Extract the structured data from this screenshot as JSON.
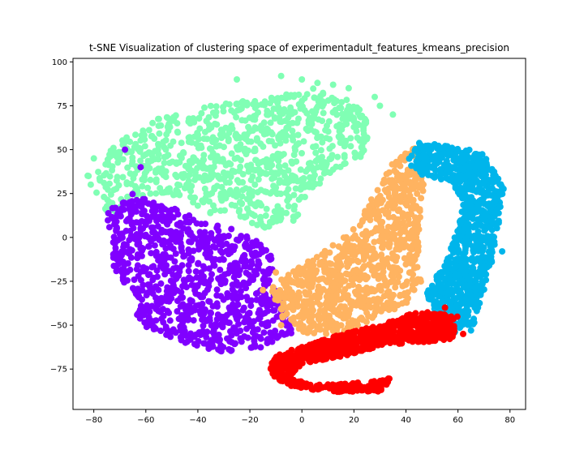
{
  "chart_data": {
    "type": "scatter",
    "title": "t-SNE Visualization of clustering space of experimentadult_features_kmeans_precision",
    "xlabel": "",
    "ylabel": "",
    "xlim": [
      -88,
      86
    ],
    "ylim": [
      -98,
      102
    ],
    "xticks": [
      -80,
      -60,
      -40,
      -20,
      0,
      20,
      40,
      60,
      80
    ],
    "yticks": [
      -75,
      -50,
      -25,
      0,
      25,
      50,
      75,
      100
    ],
    "xtick_labels": [
      "−80",
      "−60",
      "−40",
      "−20",
      "0",
      "20",
      "40",
      "60",
      "80"
    ],
    "ytick_labels": [
      "−75",
      "−50",
      "−25",
      "0",
      "25",
      "50",
      "75",
      "100"
    ],
    "grid": false,
    "legend": "none",
    "series": [
      {
        "color": "#80ffb4",
        "region": [
          [
            -83,
            35
          ],
          [
            -70,
            55
          ],
          [
            -55,
            68
          ],
          [
            -35,
            75
          ],
          [
            -15,
            80
          ],
          [
            5,
            85
          ],
          [
            20,
            78
          ],
          [
            27,
            62
          ],
          [
            25,
            48
          ],
          [
            14,
            38
          ],
          [
            5,
            28
          ],
          [
            -2,
            10
          ],
          [
            -15,
            5
          ],
          [
            -30,
            10
          ],
          [
            -45,
            20
          ],
          [
            -58,
            25
          ],
          [
            -75,
            12
          ]
        ],
        "extra_points": [
          [
            -25,
            90
          ],
          [
            -8,
            92
          ],
          [
            0,
            90
          ],
          [
            6,
            88
          ],
          [
            12,
            87
          ],
          [
            18,
            85
          ],
          [
            28,
            80
          ],
          [
            30,
            75
          ],
          [
            35,
            70
          ],
          [
            -80,
            45
          ],
          [
            -82,
            35
          ]
        ]
      },
      {
        "color": "#8000ff",
        "region": [
          [
            -75,
            15
          ],
          [
            -65,
            25
          ],
          [
            -50,
            18
          ],
          [
            -35,
            8
          ],
          [
            -20,
            2
          ],
          [
            -12,
            -10
          ],
          [
            -10,
            -25
          ],
          [
            -5,
            -45
          ],
          [
            -3,
            -55
          ],
          [
            -18,
            -65
          ],
          [
            -35,
            -65
          ],
          [
            -50,
            -58
          ],
          [
            -64,
            -48
          ],
          [
            -63,
            -35
          ],
          [
            -73,
            -18
          ]
        ],
        "extra_points": [
          [
            -68,
            50
          ],
          [
            -62,
            40
          ]
        ]
      },
      {
        "color": "#ffb360",
        "region": [
          [
            -12,
            -28
          ],
          [
            -2,
            -18
          ],
          [
            8,
            -8
          ],
          [
            20,
            5
          ],
          [
            28,
            25
          ],
          [
            36,
            45
          ],
          [
            44,
            52
          ],
          [
            48,
            40
          ],
          [
            46,
            18
          ],
          [
            45,
            -5
          ],
          [
            46,
            -25
          ],
          [
            40,
            -38
          ],
          [
            30,
            -45
          ],
          [
            15,
            -55
          ],
          [
            0,
            -55
          ],
          [
            -8,
            -45
          ]
        ],
        "extra_points": [
          [
            -10,
            -20
          ],
          [
            -15,
            -30
          ],
          [
            -8,
            -50
          ],
          [
            50,
            -30
          ]
        ]
      },
      {
        "color": "#00b5eb",
        "region": [
          [
            40,
            42
          ],
          [
            45,
            55
          ],
          [
            58,
            52
          ],
          [
            70,
            48
          ],
          [
            78,
            28
          ],
          [
            76,
            8
          ],
          [
            74,
            -10
          ],
          [
            70,
            -30
          ],
          [
            66,
            -50
          ],
          [
            58,
            -55
          ],
          [
            50,
            -48
          ],
          [
            48,
            -30
          ],
          [
            55,
            -15
          ],
          [
            60,
            5
          ],
          [
            62,
            20
          ],
          [
            58,
            30
          ],
          [
            47,
            35
          ]
        ],
        "extra_points": [
          [
            77,
            -8
          ],
          [
            65,
            -53
          ]
        ]
      },
      {
        "color": "#ff0000",
        "region": [
          [
            -12,
            -68
          ],
          [
            0,
            -62
          ],
          [
            15,
            -55
          ],
          [
            30,
            -50
          ],
          [
            45,
            -42
          ],
          [
            60,
            -45
          ],
          [
            58,
            -58
          ],
          [
            45,
            -60
          ],
          [
            30,
            -62
          ],
          [
            15,
            -68
          ],
          [
            0,
            -72
          ],
          [
            -5,
            -80
          ],
          [
            5,
            -84
          ],
          [
            20,
            -83
          ],
          [
            35,
            -80
          ],
          [
            30,
            -88
          ],
          [
            10,
            -88
          ],
          [
            -5,
            -85
          ],
          [
            -12,
            -78
          ]
        ],
        "extra_points": [
          [
            55,
            -40
          ],
          [
            62,
            -55
          ]
        ]
      }
    ]
  }
}
